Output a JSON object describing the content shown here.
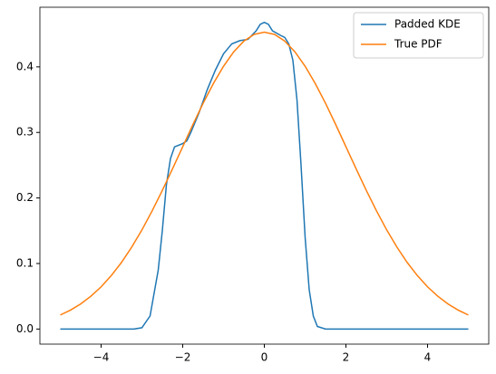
{
  "chart_data": {
    "type": "line",
    "xlim": [
      -5.5,
      5.5
    ],
    "ylim": [
      -0.023,
      0.491
    ],
    "xticks": [
      {
        "value": -4,
        "label": "−4"
      },
      {
        "value": -2,
        "label": "−2"
      },
      0,
      2,
      4
    ],
    "yticks": [
      {
        "value": 0,
        "label": "0.0"
      },
      0.1,
      0.2,
      0.3,
      0.4
    ],
    "legend": "upper right",
    "series": [
      {
        "name": "Padded KDE",
        "color": "#1f77b4",
        "x": [
          -5,
          -3.2,
          -3,
          -2.8,
          -2.6,
          -2.5,
          -2.4,
          -2.3,
          -2.2,
          -2.0,
          -1.9,
          -1.8,
          -1.6,
          -1.4,
          -1.2,
          -1.0,
          -0.8,
          -0.6,
          -0.4,
          -0.2,
          -0.1,
          0,
          0.1,
          0.2,
          0.4,
          0.5,
          0.6,
          0.7,
          0.8,
          0.9,
          1.0,
          1.1,
          1.2,
          1.3,
          1.5,
          5
        ],
        "values": [
          0,
          0,
          0.002,
          0.02,
          0.09,
          0.15,
          0.22,
          0.26,
          0.278,
          0.283,
          0.287,
          0.3,
          0.33,
          0.365,
          0.395,
          0.42,
          0.435,
          0.44,
          0.442,
          0.455,
          0.465,
          0.468,
          0.465,
          0.455,
          0.448,
          0.445,
          0.435,
          0.41,
          0.35,
          0.25,
          0.14,
          0.06,
          0.02,
          0.004,
          0,
          0
        ]
      },
      {
        "name": "True PDF",
        "color": "#ff7f0e",
        "x": [
          -5,
          -4.75,
          -4.5,
          -4.25,
          -4,
          -3.75,
          -3.5,
          -3.25,
          -3,
          -2.75,
          -2.5,
          -2.25,
          -2,
          -1.75,
          -1.5,
          -1.25,
          -1,
          -0.75,
          -0.5,
          -0.25,
          0,
          0.25,
          0.5,
          0.75,
          1,
          1.25,
          1.5,
          1.75,
          2,
          2.25,
          2.5,
          2.75,
          3,
          3.25,
          3.5,
          3.75,
          4,
          4.25,
          4.5,
          4.75,
          5
        ],
        "values": [
          0.0214,
          0.0289,
          0.0383,
          0.0501,
          0.0644,
          0.0816,
          0.1017,
          0.125,
          0.1512,
          0.1802,
          0.2114,
          0.2444,
          0.2782,
          0.3119,
          0.3445,
          0.3744,
          0.401,
          0.423,
          0.4394,
          0.4496,
          0.453,
          0.4496,
          0.4394,
          0.423,
          0.401,
          0.3744,
          0.3445,
          0.3119,
          0.2782,
          0.2444,
          0.2114,
          0.1802,
          0.1512,
          0.125,
          0.1017,
          0.0816,
          0.0644,
          0.0501,
          0.0383,
          0.0289,
          0.0214
        ]
      }
    ]
  }
}
